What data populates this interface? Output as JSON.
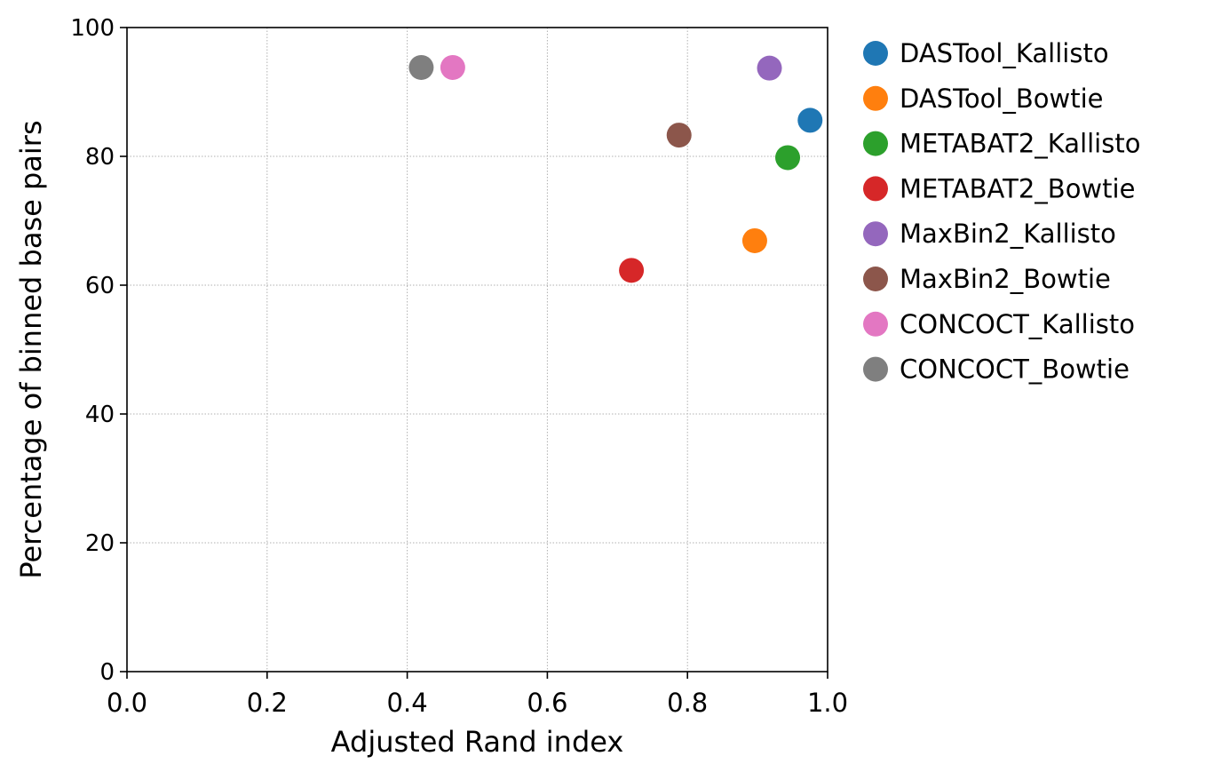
{
  "chart_data": {
    "type": "scatter",
    "title": "",
    "xlabel": "Adjusted Rand index",
    "ylabel": "Percentage of binned base pairs",
    "xlim": [
      0.0,
      1.0
    ],
    "ylim": [
      0,
      100
    ],
    "xticks": [
      "0.0",
      "0.2",
      "0.4",
      "0.6",
      "0.8",
      "1.0"
    ],
    "yticks": [
      "0",
      "20",
      "40",
      "60",
      "80",
      "100"
    ],
    "grid": true,
    "legend_position": "outside-right-top",
    "series": [
      {
        "name": "DASTool_Kallisto",
        "color": "#1f77b4",
        "x": 0.975,
        "y": 85.6
      },
      {
        "name": "DASTool_Bowtie",
        "color": "#ff7f0e",
        "x": 0.896,
        "y": 66.9
      },
      {
        "name": "METABAT2_Kallisto",
        "color": "#2ca02c",
        "x": 0.943,
        "y": 79.8
      },
      {
        "name": "METABAT2_Bowtie",
        "color": "#d62728",
        "x": 0.72,
        "y": 62.3
      },
      {
        "name": "MaxBin2_Kallisto",
        "color": "#9467bd",
        "x": 0.917,
        "y": 93.7
      },
      {
        "name": "MaxBin2_Bowtie",
        "color": "#8c564b",
        "x": 0.788,
        "y": 83.3
      },
      {
        "name": "CONCOCT_Kallisto",
        "color": "#e377c2",
        "x": 0.465,
        "y": 93.8
      },
      {
        "name": "CONCOCT_Bowtie",
        "color": "#7f7f7f",
        "x": 0.42,
        "y": 93.8
      }
    ]
  }
}
